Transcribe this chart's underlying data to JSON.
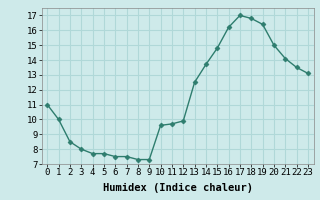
{
  "x": [
    0,
    1,
    2,
    3,
    4,
    5,
    6,
    7,
    8,
    9,
    10,
    11,
    12,
    13,
    14,
    15,
    16,
    17,
    18,
    19,
    20,
    21,
    22,
    23
  ],
  "y": [
    11,
    10,
    8.5,
    8,
    7.7,
    7.7,
    7.5,
    7.5,
    7.3,
    7.3,
    9.6,
    9.7,
    9.9,
    12.5,
    13.7,
    14.8,
    16.2,
    17.0,
    16.8,
    16.4,
    15.0,
    14.1,
    13.5,
    13.1
  ],
  "line_color": "#2e7d6e",
  "marker": "D",
  "marker_size": 2.5,
  "bg_color": "#ceeaea",
  "grid_color": "#b0d8d8",
  "xlabel": "Humidex (Indice chaleur)",
  "xlim": [
    -0.5,
    23.5
  ],
  "ylim": [
    7,
    17.5
  ],
  "yticks": [
    7,
    8,
    9,
    10,
    11,
    12,
    13,
    14,
    15,
    16,
    17
  ],
  "xticks": [
    0,
    1,
    2,
    3,
    4,
    5,
    6,
    7,
    8,
    9,
    10,
    11,
    12,
    13,
    14,
    15,
    16,
    17,
    18,
    19,
    20,
    21,
    22,
    23
  ],
  "xtick_labels": [
    "0",
    "1",
    "2",
    "3",
    "4",
    "5",
    "6",
    "7",
    "8",
    "9",
    "10",
    "11",
    "12",
    "13",
    "14",
    "15",
    "16",
    "17",
    "18",
    "19",
    "20",
    "21",
    "22",
    "23"
  ],
  "tick_fontsize": 6.5,
  "xlabel_fontsize": 7.5,
  "line_width": 1.0
}
